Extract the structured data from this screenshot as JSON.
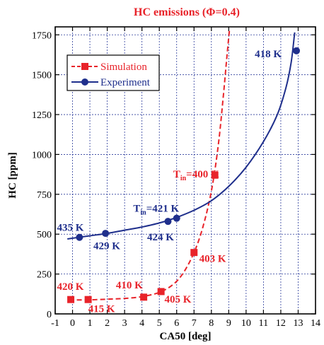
{
  "chart_data": {
    "type": "line",
    "title": "HC emissions (Φ=0.4)",
    "xlabel": "CA50 [deg]",
    "ylabel": "HC [ppm]",
    "xlim": [
      -1,
      14
    ],
    "ylim": [
      0,
      1800
    ],
    "xticks": [
      -1,
      0,
      1,
      2,
      3,
      4,
      5,
      6,
      7,
      8,
      9,
      10,
      11,
      12,
      13,
      14
    ],
    "yticks": [
      0,
      250,
      500,
      750,
      1000,
      1250,
      1500,
      1750
    ],
    "grid": true,
    "legend_position": "top-left",
    "colors": {
      "simulation": "#e8232a",
      "experiment": "#1f2f8c",
      "title": "#e8232a",
      "grid": "#2b3b9b"
    },
    "series": [
      {
        "name": "Simulation",
        "color": "#e8232a",
        "style": "dashed",
        "marker": "square",
        "points": [
          {
            "x": -0.1,
            "y": 90
          },
          {
            "x": 0.9,
            "y": 90
          },
          {
            "x": 4.1,
            "y": 105
          },
          {
            "x": 5.1,
            "y": 140
          },
          {
            "x": 7.0,
            "y": 385
          },
          {
            "x": 8.2,
            "y": 870
          }
        ],
        "fit": [
          {
            "x": -0.2,
            "y": 88
          },
          {
            "x": 0.9,
            "y": 88
          },
          {
            "x": 2,
            "y": 92
          },
          {
            "x": 3,
            "y": 97
          },
          {
            "x": 4,
            "y": 108
          },
          {
            "x": 5,
            "y": 135
          },
          {
            "x": 5.8,
            "y": 185
          },
          {
            "x": 6.4,
            "y": 260
          },
          {
            "x": 7,
            "y": 385
          },
          {
            "x": 7.5,
            "y": 540
          },
          {
            "x": 8.0,
            "y": 770
          },
          {
            "x": 8.4,
            "y": 1060
          },
          {
            "x": 8.7,
            "y": 1380
          },
          {
            "x": 8.9,
            "y": 1620
          },
          {
            "x": 9.05,
            "y": 1790
          }
        ]
      },
      {
        "name": "Experiment",
        "color": "#1f2f8c",
        "style": "solid",
        "marker": "circle",
        "points": [
          {
            "x": 0.4,
            "y": 480
          },
          {
            "x": 1.9,
            "y": 505
          },
          {
            "x": 5.5,
            "y": 580
          },
          {
            "x": 6.0,
            "y": 600
          },
          {
            "x": 12.9,
            "y": 1650
          }
        ],
        "fit": [
          {
            "x": -0.3,
            "y": 470
          },
          {
            "x": 1,
            "y": 490
          },
          {
            "x": 2,
            "y": 505
          },
          {
            "x": 3,
            "y": 525
          },
          {
            "x": 4,
            "y": 545
          },
          {
            "x": 5,
            "y": 570
          },
          {
            "x": 6,
            "y": 605
          },
          {
            "x": 7,
            "y": 650
          },
          {
            "x": 8,
            "y": 710
          },
          {
            "x": 9,
            "y": 800
          },
          {
            "x": 10,
            "y": 920
          },
          {
            "x": 11,
            "y": 1080
          },
          {
            "x": 11.8,
            "y": 1250
          },
          {
            "x": 12.3,
            "y": 1420
          },
          {
            "x": 12.6,
            "y": 1580
          },
          {
            "x": 12.8,
            "y": 1765
          }
        ]
      }
    ],
    "annotations": [
      {
        "text": "420 K",
        "x": -0.9,
        "y": 150,
        "color": "#e8232a"
      },
      {
        "text": "415 K",
        "x": 0.9,
        "y": 10,
        "color": "#e8232a"
      },
      {
        "text": "410 K",
        "x": 2.5,
        "y": 160,
        "color": "#e8232a"
      },
      {
        "text": "405 K",
        "x": 5.3,
        "y": 70,
        "color": "#e8232a"
      },
      {
        "text": "403 K",
        "x": 7.3,
        "y": 325,
        "color": "#e8232a"
      },
      {
        "text": "T",
        "sub": "in",
        "rest": "=400 K",
        "x": 5.8,
        "y": 855,
        "color": "#e8232a"
      },
      {
        "text": "435 K",
        "x": -0.9,
        "y": 520,
        "color": "#1f2f8c"
      },
      {
        "text": "429 K",
        "x": 1.2,
        "y": 405,
        "color": "#1f2f8c"
      },
      {
        "text": "424 K",
        "x": 4.3,
        "y": 460,
        "color": "#1f2f8c"
      },
      {
        "text": "T",
        "sub": "in",
        "rest": "=421 K",
        "x": 3.5,
        "y": 640,
        "color": "#1f2f8c"
      },
      {
        "text": "418 K",
        "x": 10.5,
        "y": 1610,
        "color": "#1f2f8c"
      }
    ]
  }
}
